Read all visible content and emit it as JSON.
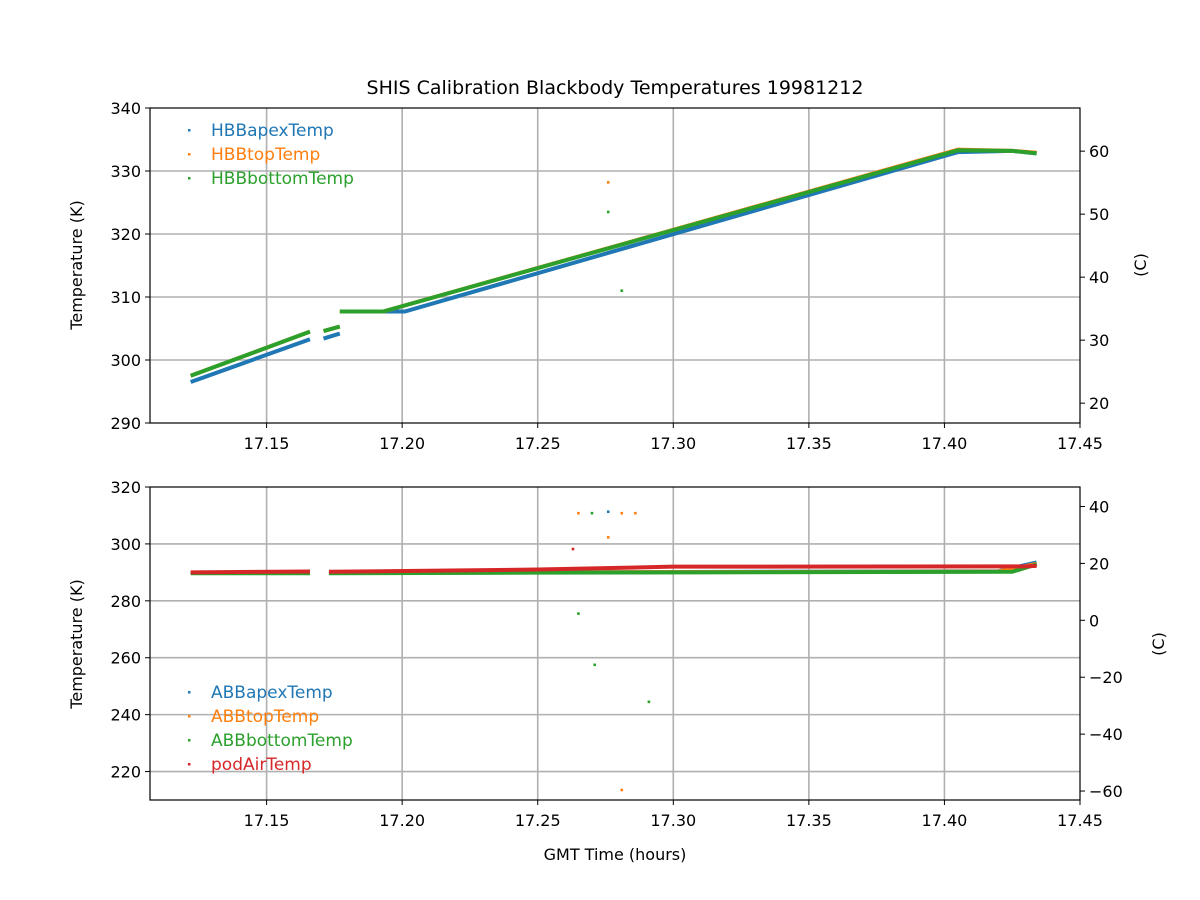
{
  "chart_data": [
    {
      "type": "scatter",
      "title": "SHIS Calibration Blackbody Temperatures 19981212",
      "xlabel": "",
      "ylabel": "Temperature (K)",
      "ylabel_right": "(C)",
      "xlim": [
        17.107,
        17.45
      ],
      "ylim": [
        290,
        340
      ],
      "xticks": [
        "17.15",
        "17.20",
        "17.25",
        "17.30",
        "17.35",
        "17.40",
        "17.45"
      ],
      "yticks": [
        "290",
        "300",
        "310",
        "320",
        "330",
        "340"
      ],
      "yticks_right": [
        "20",
        "30",
        "40",
        "50",
        "60"
      ],
      "grid": true,
      "legend": "top-left",
      "series": [
        {
          "name": "HBBapexTemp",
          "color": "#1f77b4",
          "segments": [
            [
              [
                17.122,
                296.5
              ],
              [
                17.166,
                303.3
              ]
            ],
            [
              [
                17.171,
                303.4
              ],
              [
                17.177,
                304.2
              ]
            ],
            [
              [
                17.185,
                307.7
              ],
              [
                17.201,
                307.7
              ],
              [
                17.405,
                333.0
              ],
              [
                17.425,
                333.2
              ],
              [
                17.434,
                332.8
              ]
            ]
          ],
          "outliers": []
        },
        {
          "name": "HBBtopTemp",
          "color": "#ff7f0e",
          "segments": [
            [
              [
                17.122,
                297.5
              ],
              [
                17.166,
                304.5
              ]
            ],
            [
              [
                17.171,
                304.6
              ],
              [
                17.177,
                305.3
              ]
            ],
            [
              [
                17.177,
                307.7
              ],
              [
                17.193,
                307.7
              ],
              [
                17.405,
                333.4
              ],
              [
                17.425,
                333.2
              ],
              [
                17.434,
                332.9
              ]
            ]
          ],
          "outliers": [
            [
              17.276,
              328.2
            ]
          ]
        },
        {
          "name": "HBBbottomTemp",
          "color": "#2ca02c",
          "segments": [
            [
              [
                17.122,
                297.5
              ],
              [
                17.166,
                304.5
              ]
            ],
            [
              [
                17.171,
                304.6
              ],
              [
                17.177,
                305.3
              ]
            ],
            [
              [
                17.177,
                307.7
              ],
              [
                17.193,
                307.7
              ],
              [
                17.405,
                333.3
              ],
              [
                17.425,
                333.2
              ],
              [
                17.434,
                332.8
              ]
            ]
          ],
          "outliers": [
            [
              17.276,
              323.5
            ],
            [
              17.281,
              311.0
            ]
          ]
        }
      ]
    },
    {
      "type": "scatter",
      "title": "",
      "xlabel": "GMT Time (hours)",
      "ylabel": "Temperature (K)",
      "ylabel_right": "(C)",
      "xlim": [
        17.107,
        17.45
      ],
      "ylim": [
        210,
        320
      ],
      "xticks": [
        "17.15",
        "17.20",
        "17.25",
        "17.30",
        "17.35",
        "17.40",
        "17.45"
      ],
      "yticks": [
        "220",
        "240",
        "260",
        "280",
        "300",
        "320"
      ],
      "yticks_right": [
        "−60",
        "−40",
        "−20",
        "0",
        "20",
        "40"
      ],
      "grid": true,
      "legend": "bottom-left",
      "series": [
        {
          "name": "ABBapexTemp",
          "color": "#1f77b4",
          "segments": [
            [
              [
                17.122,
                289.8
              ],
              [
                17.166,
                289.8
              ]
            ],
            [
              [
                17.173,
                289.8
              ],
              [
                17.25,
                290.0
              ],
              [
                17.42,
                290.4
              ],
              [
                17.434,
                293.5
              ]
            ]
          ],
          "outliers": [
            [
              17.276,
              311.3
            ]
          ]
        },
        {
          "name": "ABBtopTemp",
          "color": "#ff7f0e",
          "segments": [
            [
              [
                17.122,
                289.8
              ],
              [
                17.166,
                289.8
              ]
            ],
            [
              [
                17.173,
                289.8
              ],
              [
                17.25,
                290.0
              ],
              [
                17.42,
                290.3
              ],
              [
                17.434,
                293.0
              ]
            ]
          ],
          "outliers": [
            [
              17.265,
              310.8
            ],
            [
              17.281,
              310.8
            ],
            [
              17.286,
              310.8
            ],
            [
              17.276,
              302.3
            ],
            [
              17.281,
              213.5
            ]
          ]
        },
        {
          "name": "ABBbottomTemp",
          "color": "#2ca02c",
          "segments": [
            [
              [
                17.122,
                289.7
              ],
              [
                17.166,
                289.7
              ]
            ],
            [
              [
                17.173,
                289.7
              ],
              [
                17.25,
                289.9
              ],
              [
                17.425,
                290.2
              ],
              [
                17.434,
                292.8
              ]
            ]
          ],
          "outliers": [
            [
              17.27,
              310.8
            ],
            [
              17.265,
              275.5
            ],
            [
              17.271,
              257.5
            ],
            [
              17.291,
              244.5
            ]
          ]
        },
        {
          "name": "podAirTemp",
          "color": "#d62728",
          "segments": [
            [
              [
                17.122,
                290.0
              ],
              [
                17.166,
                290.3
              ]
            ],
            [
              [
                17.173,
                290.2
              ],
              [
                17.25,
                291.0
              ],
              [
                17.3,
                292.0
              ],
              [
                17.43,
                292.1
              ],
              [
                17.434,
                292.3
              ]
            ]
          ],
          "outliers": [
            [
              17.263,
              298.2
            ]
          ]
        }
      ]
    }
  ]
}
